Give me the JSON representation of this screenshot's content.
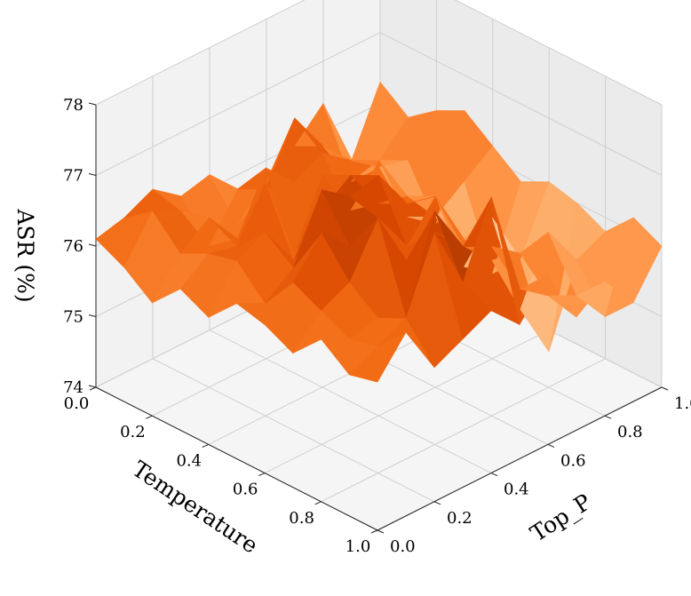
{
  "chart_data": {
    "type": "surface3d",
    "title": "",
    "xlabel": "Temperature",
    "ylabel": "Top_P",
    "zlabel": "ASR (%)",
    "x": [
      0.0,
      0.1,
      0.2,
      0.3,
      0.4,
      0.5,
      0.6,
      0.7,
      0.8,
      0.9,
      1.0
    ],
    "y": [
      0.0,
      0.1,
      0.2,
      0.3,
      0.4,
      0.5,
      0.6,
      0.7,
      0.8,
      0.9,
      1.0
    ],
    "xticks": [
      "0.0",
      "0.2",
      "0.4",
      "0.6",
      "0.8",
      "1.0"
    ],
    "yticks": [
      "0.0",
      "0.2",
      "0.4",
      "0.6",
      "0.8",
      "1.0"
    ],
    "zticks": [
      "74",
      "75",
      "76",
      "77",
      "78"
    ],
    "xlim": [
      0.0,
      1.0
    ],
    "ylim": [
      0.0,
      1.0
    ],
    "zlim": [
      74,
      78
    ],
    "colormap": "Oranges",
    "grid": true,
    "z": [
      [
        76.1,
        76.2,
        76.4,
        76.1,
        76.2,
        75.3,
        75.7,
        76.0,
        76.4,
        75.4,
        76.3
      ],
      [
        75.9,
        76.5,
        76.3,
        75.6,
        76.2,
        76.0,
        76.8,
        76.2,
        75.5,
        75.6,
        76.0
      ],
      [
        75.6,
        76.1,
        76.4,
        75.9,
        76.7,
        76.3,
        76.5,
        76.2,
        75.9,
        75.8,
        76.3
      ],
      [
        76.0,
        76.3,
        76.2,
        76.9,
        75.7,
        76.6,
        75.9,
        76.4,
        75.4,
        75.1,
        76.5
      ],
      [
        75.8,
        76.4,
        76.6,
        76.0,
        76.5,
        76.8,
        76.2,
        76.1,
        75.6,
        75.9,
        76.2
      ],
      [
        76.2,
        76.0,
        76.3,
        77.2,
        76.9,
        77.0,
        76.4,
        76.3,
        75.1,
        74.8,
        75.9
      ],
      [
        76.1,
        76.5,
        77.0,
        76.6,
        76.8,
        76.2,
        76.7,
        75.9,
        76.0,
        75.2,
        76.1
      ],
      [
        75.9,
        76.3,
        76.5,
        77.2,
        76.4,
        76.6,
        76.2,
        75.8,
        74.9,
        74.1,
        76.0
      ],
      [
        76.3,
        76.1,
        76.2,
        76.0,
        77.3,
        76.6,
        76.4,
        76.1,
        76.2,
        75.6,
        75.8
      ],
      [
        76.0,
        76.2,
        76.4,
        77.4,
        76.5,
        77.5,
        76.0,
        75.7,
        75.5,
        75.0,
        76.2
      ],
      [
        76.1,
        76.6,
        75.9,
        76.1,
        76.3,
        75.9,
        76.4,
        75.6,
        75.9,
        75.4,
        76.0
      ]
    ]
  }
}
